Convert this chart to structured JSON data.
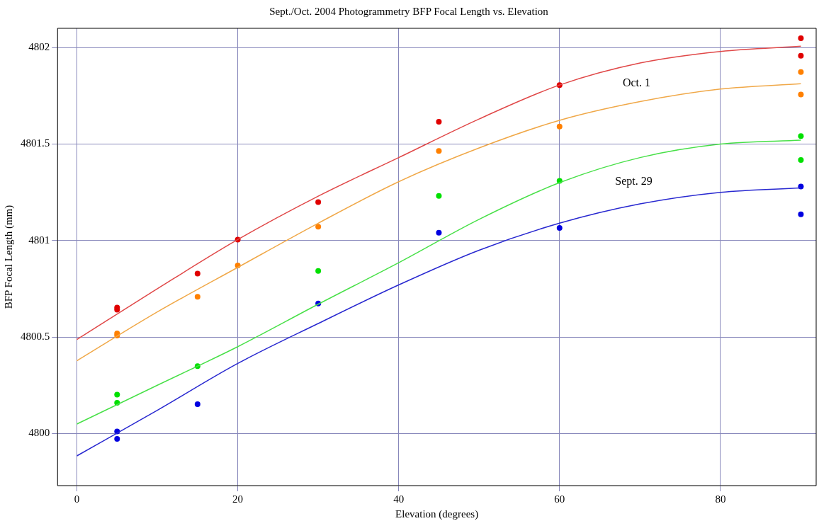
{
  "chart_data": {
    "type": "scatter",
    "title": "Sept./Oct. 2004 Photogrammetry BFP Focal Length vs. Elevation",
    "xlabel": "Elevation (degrees)",
    "ylabel": "BFP Focal Length (mm)",
    "xlim": [
      -2.4,
      91.9
    ],
    "xticks": [
      0,
      20,
      40,
      60,
      80
    ],
    "ylim": [
      4799.73,
      4802.1
    ],
    "yticks": [
      4800,
      4800.5,
      4801,
      4801.5,
      4802
    ],
    "grid": true,
    "annotations": [
      "Oct. 1",
      "Sept. 29"
    ],
    "series": [
      {
        "type": "line",
        "marker": "none",
        "color": "#e04848",
        "x": [
          0,
          10,
          20,
          30,
          40,
          50,
          60,
          70,
          80,
          90
        ],
        "values": [
          4800.487,
          4800.75,
          4801.005,
          4801.23,
          4801.43,
          4801.63,
          4801.806,
          4801.92,
          4801.98,
          4802.007
        ]
      },
      {
        "type": "line",
        "marker": "none",
        "color": "#f0a848",
        "x": [
          0,
          10,
          20,
          30,
          40,
          50,
          60,
          70,
          80,
          90
        ],
        "values": [
          4800.377,
          4800.63,
          4800.861,
          4801.09,
          4801.305,
          4801.48,
          4801.623,
          4801.72,
          4801.785,
          4801.813
        ]
      },
      {
        "type": "line",
        "marker": "none",
        "color": "#48e048",
        "x": [
          0,
          10,
          20,
          30,
          40,
          50,
          60,
          70,
          80,
          90
        ],
        "values": [
          4800.049,
          4800.25,
          4800.45,
          4800.67,
          4800.885,
          4801.11,
          4801.3,
          4801.43,
          4801.5,
          4801.52
        ]
      },
      {
        "type": "line",
        "marker": "none",
        "color": "#2828d0",
        "x": [
          0,
          10,
          20,
          30,
          40,
          50,
          60,
          70,
          80,
          90
        ],
        "values": [
          4799.884,
          4800.12,
          4800.363,
          4800.57,
          4800.77,
          4800.95,
          4801.09,
          4801.19,
          4801.25,
          4801.273
        ]
      },
      {
        "type": "scatter",
        "marker": "circle",
        "color": "#e00000",
        "x": [
          5,
          5,
          15,
          20,
          30,
          45,
          60,
          90,
          90
        ],
        "values": [
          4800.653,
          4800.642,
          4800.829,
          4801.005,
          4801.199,
          4801.616,
          4801.806,
          4802.049,
          4801.958
        ]
      },
      {
        "type": "scatter",
        "marker": "circle",
        "color": "#ff8000",
        "x": [
          5,
          5,
          15,
          20,
          30,
          45,
          60,
          90,
          90
        ],
        "values": [
          4800.519,
          4800.508,
          4800.709,
          4800.871,
          4801.072,
          4801.464,
          4801.591,
          4801.873,
          4801.757
        ]
      },
      {
        "type": "scatter",
        "marker": "circle",
        "color": "#00e000",
        "x": [
          5,
          5,
          15,
          30,
          45,
          60,
          90,
          90
        ],
        "values": [
          4800.201,
          4800.159,
          4800.349,
          4800.843,
          4801.231,
          4801.309,
          4801.541,
          4801.418
        ]
      },
      {
        "type": "scatter",
        "marker": "circle",
        "color": "#0000e0",
        "x": [
          5,
          5,
          15,
          30,
          45,
          60,
          90,
          90
        ],
        "values": [
          4800.011,
          4799.972,
          4800.152,
          4800.674,
          4801.041,
          4801.065,
          4801.28,
          4801.136
        ]
      }
    ]
  }
}
